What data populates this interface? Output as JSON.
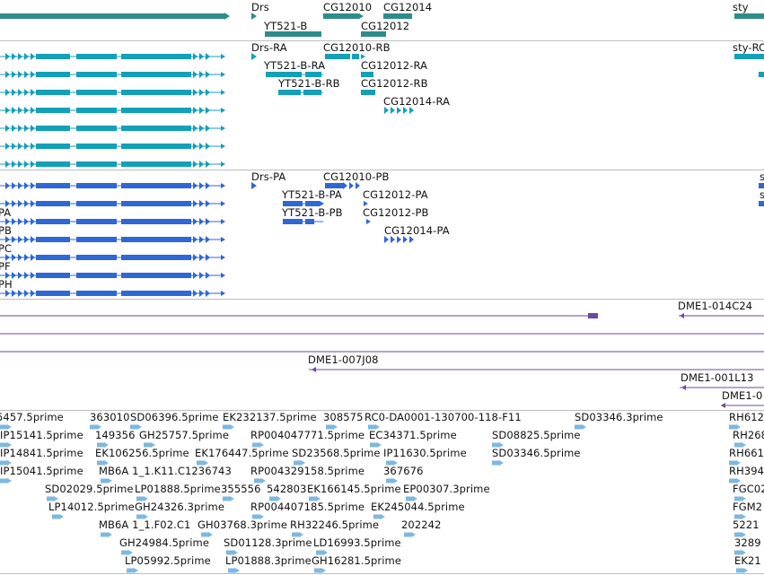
{
  "colors": {
    "gene": "#2e8c88",
    "mrna_cyan": "#13a0b8",
    "mrna_blue": "#2f67d4",
    "clone": "#6b4aa0",
    "est": "#7eb8e0"
  },
  "tracks": {
    "genes": {
      "labels": [
        "Drs",
        "YT521-B",
        "CG12010",
        "CG12014",
        "CG12012",
        "sty"
      ]
    },
    "transcripts_rna": {
      "labels": [
        "Drs-RA",
        "CG12010-RB",
        "YT521-B-RA",
        "CG12012-RA",
        "YT521-B-RB",
        "CG12012-RB",
        "CG12014-RA",
        "sty-RC"
      ]
    },
    "transcripts_pa": {
      "labels": [
        "Drs-PA",
        "CG12010-PB",
        "YT521-B-PA",
        "CG12012-PA",
        "YT521-B-PB",
        "CG12012-PB",
        "CG12014-PA",
        "PA",
        "PB",
        "PC",
        "PF",
        "PH",
        "s",
        "s"
      ]
    },
    "clones": {
      "labels": [
        "DME1-014C24",
        "DME1-007J08",
        "DME1-001L13",
        "DME1-0"
      ]
    },
    "ests": {
      "labels": [
        "5457.5prime",
        "363010",
        "SD06396.5prime",
        "EK232137.5prime",
        "308575",
        "RC0-DA0001-130700-118-F11",
        "SD03346.3prime",
        "RH612",
        "IP15141.5prime",
        "149356",
        "GH25757.5prime",
        "RP004047771.5prime",
        "EC34371.5prime",
        "SD08825.5prime",
        "RH268",
        "IP14841.5prime",
        "EK106256.5prime",
        "EK176447.5prime",
        "SD23568.5prime",
        "IP11630.5prime",
        "SD03346.5prime",
        "RH661",
        "IP15041.5prime",
        "MB6A 1_1.K11.C1236743",
        "RP004329158.5prime",
        "367676",
        "RH394",
        "SD02029.5prime",
        "LP01888.5prime",
        "355556",
        "542803",
        "EK166145.5prime",
        "EP00307.3prime",
        "FGC02",
        "LP14012.5prime",
        "GH24326.3prime",
        "RP004407185.5prime",
        "EK245044.5prime",
        "FGM2",
        "MB6A 1_1.F02.C1",
        "GH03768.3prime",
        "RH32246.5prime",
        "202242",
        "5221",
        "GH24984.5prime",
        "SD01128.3prime",
        "LD16993.5prime",
        "3289",
        "LP05992.5prime",
        "LP01888.3prime",
        "GH16281.5prime",
        "EK21"
      ]
    }
  }
}
